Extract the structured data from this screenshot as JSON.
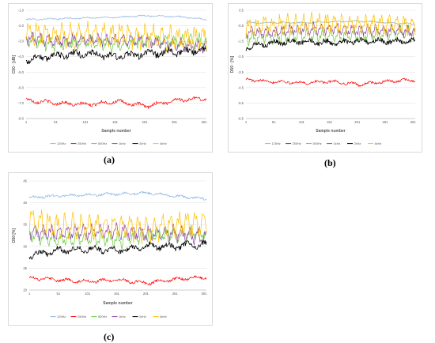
{
  "captions": [
    "(a)",
    "(b)",
    "(c)"
  ],
  "colors": {
    "125Hz": "#8db4e2",
    "250Hz": "#ff0000",
    "500Hz": "#66cc33",
    "1kHz": "#8e44ad",
    "2kHz": "#000000",
    "4kHz": "#ffc000",
    "grid": "#e6e6e6",
    "axis": "#bfbfbf",
    "text": "#595959"
  },
  "chart_data": [
    {
      "id": "a",
      "type": "line",
      "xlabel": "Sample number",
      "ylabel": "C50 · [dB]",
      "ylim": [
        -8.0,
        -1.0
      ],
      "yticks": [
        "-1.0",
        "-2.0",
        "-3.0",
        "-4.0",
        "-5.0",
        "-6.0",
        "-7.0",
        "-8.0"
      ],
      "xticks": [
        "1",
        "51",
        "101",
        "151",
        "201",
        "251",
        "301"
      ],
      "x_range": [
        1,
        305
      ],
      "series": [
        {
          "name": "125Hz",
          "base": -1.5,
          "amp": 0.05,
          "noise": 0.04,
          "kind": "hump",
          "values": [
            -1.6,
            -1.55,
            -1.5,
            -1.45,
            -1.35,
            -1.4,
            -1.6
          ]
        },
        {
          "name": "250Hz",
          "base": -6.9,
          "amp": 0.15,
          "noise": 0.1,
          "kind": "wave",
          "values": [
            -6.8,
            -7.0,
            -7.1,
            -6.9,
            -7.2,
            -6.8,
            -6.7
          ]
        },
        {
          "name": "500Hz",
          "base": -3.0,
          "amp": 0.3,
          "noise": 0.15,
          "kind": "osc",
          "values": [
            -2.9,
            -3.2,
            -3.0,
            -3.3,
            -3.0,
            -3.0,
            -3.0
          ]
        },
        {
          "name": "1kHz",
          "base": -2.9,
          "amp": 0.25,
          "noise": 0.15,
          "kind": "osc",
          "values": [
            -2.8,
            -3.0,
            -2.9,
            -2.9,
            -3.0,
            -3.2,
            -3.4
          ]
        },
        {
          "name": "2kHz",
          "base": -4.0,
          "amp": 0.25,
          "noise": 0.2,
          "kind": "rise",
          "values": [
            -4.2,
            -3.9,
            -3.8,
            -4.0,
            -3.8,
            -3.7,
            -3.6
          ]
        },
        {
          "name": "4kHz",
          "base": -2.7,
          "amp": 0.5,
          "noise": 0.25,
          "kind": "osc",
          "values": [
            -2.4,
            -2.6,
            -2.6,
            -2.6,
            -2.7,
            -2.8,
            -2.8
          ]
        }
      ]
    },
    {
      "id": "b",
      "type": "line",
      "xlabel": "Sample number",
      "ylabel": "D50 · [%]",
      "ylim": [
        -6.5,
        0.5
      ],
      "yticks": [
        "0.5",
        "-0.5",
        "-1.5",
        "-2.5",
        "-3.5",
        "-4.5",
        "-5.5",
        "-6.5"
      ],
      "yticks_shown": [
        "0.5",
        "-0.5",
        "-1.5",
        "-2.5",
        "-3.5",
        "-4.5",
        "-5.5",
        "-6.5"
      ],
      "xticks": [
        "1",
        "51",
        "101",
        "151",
        "201",
        "251",
        "301"
      ],
      "x_range": [
        1,
        305
      ],
      "series": [
        {
          "name": "125Hz",
          "base": -0.3,
          "amp": 0.05,
          "noise": 0.04,
          "kind": "hump",
          "values": [
            -0.3,
            -0.3,
            -0.3,
            -0.25,
            -0.2,
            -0.3,
            -0.4
          ]
        },
        {
          "name": "250Hz",
          "base": -4.1,
          "amp": 0.12,
          "noise": 0.08,
          "kind": "wave",
          "values": [
            -4.0,
            -4.1,
            -4.2,
            -4.1,
            -4.3,
            -4.1,
            -4.0
          ]
        },
        {
          "name": "500Hz",
          "base": -1.3,
          "amp": 0.3,
          "noise": 0.12,
          "kind": "osc",
          "values": [
            -1.3,
            -1.2,
            -1.1,
            -1.2,
            -1.1,
            -1.0,
            -0.9
          ]
        },
        {
          "name": "1kHz",
          "base": -0.9,
          "amp": 0.25,
          "noise": 0.12,
          "kind": "osc",
          "values": [
            -0.9,
            -0.9,
            -0.7,
            -0.7,
            -0.8,
            -0.8,
            -0.9
          ]
        },
        {
          "name": "2kHz",
          "base": -1.7,
          "amp": 0.2,
          "noise": 0.15,
          "kind": "rise",
          "values": [
            -1.9,
            -1.6,
            -1.5,
            -1.6,
            -1.5,
            -1.5,
            -1.5
          ]
        },
        {
          "name": "4kHz",
          "base": -0.6,
          "amp": 0.45,
          "noise": 0.2,
          "kind": "osc",
          "values": [
            -0.6,
            -0.5,
            -0.4,
            -0.4,
            -0.4,
            -0.4,
            -0.5
          ]
        }
      ]
    },
    {
      "id": "c",
      "type": "line",
      "xlabel": "Sample number",
      "ylabel": "D50 [%]",
      "ylim": [
        20,
        45
      ],
      "yticks": [
        "45",
        "40",
        "35",
        "30",
        "25",
        "20"
      ],
      "xticks": [
        "1",
        "51",
        "101",
        "151",
        "201",
        "251",
        "301"
      ],
      "x_range": [
        1,
        305
      ],
      "series": [
        {
          "name": "125Hz",
          "base": 41.5,
          "amp": 0.3,
          "noise": 0.25,
          "kind": "hump",
          "values": [
            41.2,
            41.6,
            41.8,
            42.0,
            42.3,
            41.5,
            40.9
          ]
        },
        {
          "name": "250Hz",
          "base": 22.4,
          "amp": 0.5,
          "noise": 0.3,
          "kind": "wave",
          "values": [
            22.8,
            22.3,
            22.0,
            22.3,
            21.6,
            22.5,
            23.0
          ]
        },
        {
          "name": "500Hz",
          "base": 32.5,
          "amp": 1.2,
          "noise": 0.5,
          "kind": "osc",
          "values": [
            32.5,
            31.5,
            32.0,
            31.5,
            32.5,
            32.8,
            33.0
          ]
        },
        {
          "name": "1kHz",
          "base": 33.0,
          "amp": 1.2,
          "noise": 0.5,
          "kind": "osc",
          "values": [
            33.5,
            33.0,
            33.5,
            33.5,
            33.0,
            33.0,
            32.0
          ]
        },
        {
          "name": "2kHz",
          "base": 29.0,
          "amp": 0.9,
          "noise": 0.6,
          "kind": "rise",
          "values": [
            28.0,
            29.0,
            29.5,
            29.0,
            30.0,
            30.0,
            30.5
          ]
        },
        {
          "name": "4kHz",
          "base": 34.5,
          "amp": 2.0,
          "noise": 0.8,
          "kind": "osc",
          "values": [
            36.0,
            34.5,
            34.5,
            34.5,
            34.0,
            35.0,
            35.5
          ]
        }
      ]
    }
  ]
}
